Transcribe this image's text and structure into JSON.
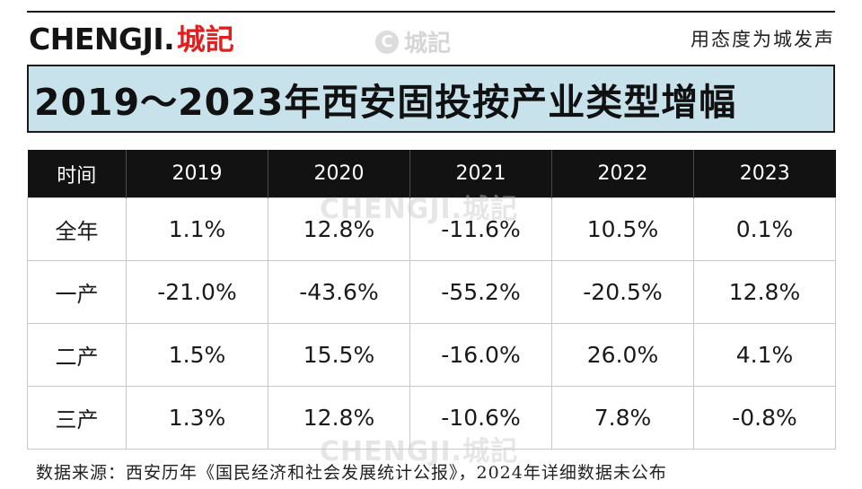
{
  "header": {
    "logo_latin": "CHENGJI",
    "logo_dot": ".",
    "logo_cn": "城記",
    "watermark_icon": "C",
    "watermark_text": "城記",
    "slogan": "用态度为城发声"
  },
  "title": "2019～2023年西安固投按产业类型增幅",
  "table": {
    "header_cells": [
      "时间",
      "2019",
      "2020",
      "2021",
      "2022",
      "2023"
    ],
    "rows": [
      {
        "label": "全年",
        "values": [
          "1.1%",
          "12.8%",
          "-11.6%",
          "10.5%",
          "0.1%"
        ]
      },
      {
        "label": "一产",
        "values": [
          "-21.0%",
          "-43.6%",
          "-55.2%",
          "-20.5%",
          "12.8%"
        ]
      },
      {
        "label": "二产",
        "values": [
          "1.5%",
          "15.5%",
          "-16.0%",
          "26.0%",
          "4.1%"
        ]
      },
      {
        "label": "三产",
        "values": [
          "1.3%",
          "12.8%",
          "-10.6%",
          "7.8%",
          "-0.8%"
        ]
      }
    ]
  },
  "watermark_body": "CHENGJI.城記",
  "footer": {
    "source": "数据来源：西安历年《国民经济和社会发展统计公报》，2024年详细数据未公布"
  },
  "colors": {
    "title_bg": "#c7e2ea",
    "header_bg": "#121212",
    "logo_red": "#e02020"
  }
}
